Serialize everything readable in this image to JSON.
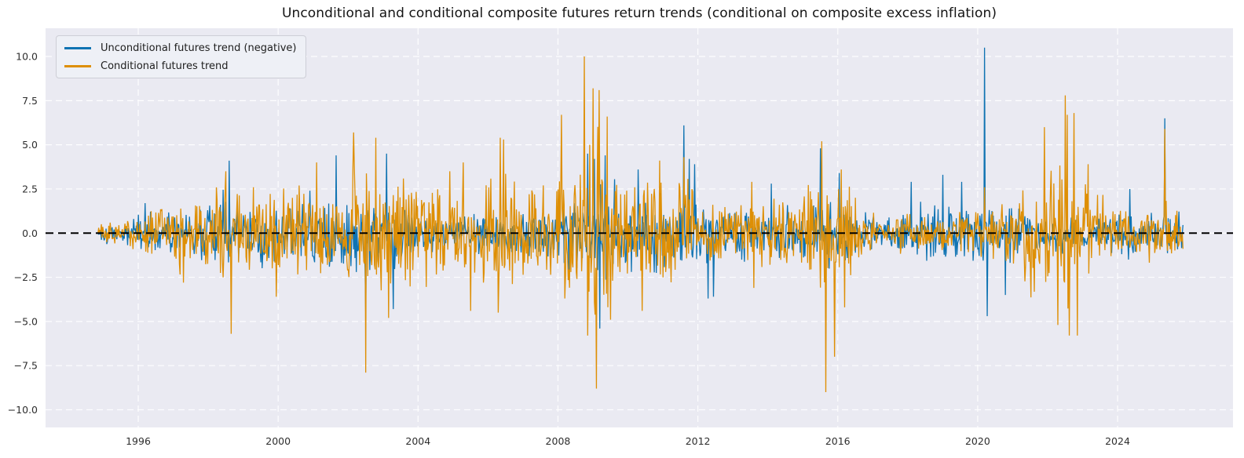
{
  "chart_data": {
    "type": "line",
    "title": "Unconditional and conditional composite futures return trends (conditional on composite excess inflation)",
    "xlabel": "",
    "ylabel": "",
    "xlim": [
      1993.35,
      2027.3
    ],
    "ylim": [
      -11.0,
      11.6
    ],
    "x_ticks": [
      1996,
      2000,
      2004,
      2008,
      2012,
      2016,
      2020,
      2024
    ],
    "x_tick_labels": [
      "1996",
      "2000",
      "2004",
      "2008",
      "2012",
      "2016",
      "2020",
      "2024"
    ],
    "y_ticks": [
      -10.0,
      -7.5,
      -5.0,
      -2.5,
      0.0,
      2.5,
      5.0,
      7.5,
      10.0
    ],
    "y_tick_labels": [
      "−10.0",
      "−7.5",
      "−5.0",
      "−2.5",
      "0.0",
      "2.5",
      "5.0",
      "7.5",
      "10.0"
    ],
    "grid": {
      "show": true,
      "color": "#ffffff",
      "style": "dashed"
    },
    "plot_background_color": "#eaeaf2",
    "figure_background_color": "#ffffff",
    "tick_label_color": "#2e2e2e",
    "zero_line": {
      "y": 0.0,
      "color": "#000000",
      "style": "dashed",
      "width": 2
    },
    "legend_position": "upper-left",
    "data_x_range": [
      1994.85,
      2025.87
    ],
    "samples_per_year": 52,
    "series": [
      {
        "name": "Unconditional futures trend (negative)",
        "color": "#0f73b2",
        "line_width": 1.3,
        "seed": 1337,
        "sigma_envelope": [
          [
            1994.85,
            0.25
          ],
          [
            1995.5,
            0.3
          ],
          [
            1996.3,
            0.5
          ],
          [
            1997.2,
            0.6
          ],
          [
            1998.2,
            0.8
          ],
          [
            1998.8,
            0.85
          ],
          [
            1999.5,
            0.75
          ],
          [
            2000.5,
            0.7
          ],
          [
            2001.5,
            0.85
          ],
          [
            2002.5,
            1.0
          ],
          [
            2003.2,
            0.85
          ],
          [
            2004.0,
            0.6
          ],
          [
            2005.0,
            0.45
          ],
          [
            2006.0,
            0.45
          ],
          [
            2007.0,
            0.55
          ],
          [
            2007.8,
            0.75
          ],
          [
            2008.5,
            1.0
          ],
          [
            2009.2,
            1.25
          ],
          [
            2010.0,
            0.95
          ],
          [
            2011.0,
            1.0
          ],
          [
            2011.8,
            1.0
          ],
          [
            2012.5,
            0.75
          ],
          [
            2013.5,
            0.6
          ],
          [
            2014.5,
            0.6
          ],
          [
            2015.3,
            0.8
          ],
          [
            2016.0,
            0.75
          ],
          [
            2016.8,
            0.5
          ],
          [
            2017.4,
            0.35
          ],
          [
            2018.0,
            0.7
          ],
          [
            2019.0,
            0.8
          ],
          [
            2019.8,
            0.75
          ],
          [
            2020.4,
            0.9
          ],
          [
            2021.0,
            0.6
          ],
          [
            2022.0,
            0.5
          ],
          [
            2023.0,
            0.45
          ],
          [
            2024.0,
            0.5
          ],
          [
            2025.0,
            0.6
          ],
          [
            2025.87,
            0.55
          ]
        ],
        "notable_points": [
          [
            1996.2,
            1.7
          ],
          [
            1998.6,
            4.1
          ],
          [
            2000.9,
            2.4
          ],
          [
            2001.65,
            4.4
          ],
          [
            2002.5,
            -4.5
          ],
          [
            2003.1,
            4.5
          ],
          [
            2003.3,
            -4.3
          ],
          [
            2008.85,
            4.5
          ],
          [
            2009.05,
            4.2
          ],
          [
            2009.2,
            -5.4
          ],
          [
            2009.35,
            4.4
          ],
          [
            2010.3,
            3.6
          ],
          [
            2011.6,
            6.1
          ],
          [
            2011.75,
            4.2
          ],
          [
            2011.9,
            3.9
          ],
          [
            2012.3,
            -3.7
          ],
          [
            2012.45,
            -3.6
          ],
          [
            2014.1,
            2.8
          ],
          [
            2015.5,
            4.8
          ],
          [
            2016.05,
            3.4
          ],
          [
            2018.1,
            2.9
          ],
          [
            2019.0,
            3.3
          ],
          [
            2019.55,
            2.9
          ],
          [
            2020.2,
            10.5
          ],
          [
            2020.27,
            -4.7
          ],
          [
            2020.8,
            -3.5
          ],
          [
            2024.35,
            2.5
          ],
          [
            2025.35,
            6.5
          ]
        ]
      },
      {
        "name": "Conditional futures trend",
        "color": "#de8f05",
        "line_width": 1.3,
        "seed": 7331,
        "sigma_envelope": [
          [
            1994.85,
            0.3
          ],
          [
            1995.5,
            0.35
          ],
          [
            1996.3,
            0.65
          ],
          [
            1997.2,
            0.95
          ],
          [
            1998.2,
            1.25
          ],
          [
            1998.8,
            1.3
          ],
          [
            1999.5,
            1.15
          ],
          [
            2000.5,
            1.1
          ],
          [
            2001.5,
            1.25
          ],
          [
            2002.2,
            1.6
          ],
          [
            2002.8,
            1.6
          ],
          [
            2003.5,
            1.35
          ],
          [
            2004.3,
            1.2
          ],
          [
            2005.2,
            1.3
          ],
          [
            2006.2,
            1.5
          ],
          [
            2007.0,
            1.25
          ],
          [
            2007.8,
            1.35
          ],
          [
            2008.4,
            1.8
          ],
          [
            2008.9,
            2.2
          ],
          [
            2009.3,
            2.3
          ],
          [
            2009.9,
            1.7
          ],
          [
            2010.6,
            1.4
          ],
          [
            2011.4,
            1.45
          ],
          [
            2012.2,
            0.9
          ],
          [
            2013.0,
            0.75
          ],
          [
            2014.0,
            0.75
          ],
          [
            2015.0,
            1.2
          ],
          [
            2015.7,
            1.5
          ],
          [
            2016.3,
            1.2
          ],
          [
            2017.0,
            0.45
          ],
          [
            2018.0,
            0.45
          ],
          [
            2019.0,
            0.5
          ],
          [
            2019.8,
            0.6
          ],
          [
            2020.5,
            0.8
          ],
          [
            2021.3,
            1.1
          ],
          [
            2021.9,
            1.5
          ],
          [
            2022.5,
            1.9
          ],
          [
            2023.0,
            1.4
          ],
          [
            2023.6,
            0.8
          ],
          [
            2024.4,
            0.55
          ],
          [
            2025.0,
            0.7
          ],
          [
            2025.87,
            0.65
          ]
        ],
        "notable_points": [
          [
            1997.3,
            -2.8
          ],
          [
            1998.5,
            3.5
          ],
          [
            1998.65,
            -5.7
          ],
          [
            1999.3,
            2.6
          ],
          [
            1999.95,
            -3.6
          ],
          [
            2001.1,
            4.0
          ],
          [
            2002.15,
            5.7
          ],
          [
            2002.5,
            -7.9
          ],
          [
            2002.8,
            5.4
          ],
          [
            2003.15,
            -4.8
          ],
          [
            2004.9,
            3.5
          ],
          [
            2005.3,
            4.0
          ],
          [
            2005.5,
            -4.4
          ],
          [
            2006.3,
            -4.5
          ],
          [
            2006.35,
            5.4
          ],
          [
            2006.45,
            5.3
          ],
          [
            2008.1,
            6.7
          ],
          [
            2008.2,
            -3.7
          ],
          [
            2008.75,
            10.0
          ],
          [
            2008.85,
            -5.8
          ],
          [
            2009.0,
            8.2
          ],
          [
            2009.1,
            -8.8
          ],
          [
            2009.17,
            8.1
          ],
          [
            2009.4,
            6.6
          ],
          [
            2009.5,
            -4.9
          ],
          [
            2010.4,
            -4.4
          ],
          [
            2011.6,
            4.3
          ],
          [
            2013.55,
            2.9
          ],
          [
            2013.6,
            -3.1
          ],
          [
            2015.55,
            5.2
          ],
          [
            2015.65,
            -9.0
          ],
          [
            2015.9,
            -7.0
          ],
          [
            2016.1,
            3.6
          ],
          [
            2016.2,
            -4.2
          ],
          [
            2020.2,
            2.6
          ],
          [
            2021.9,
            6.0
          ],
          [
            2022.3,
            -5.2
          ],
          [
            2022.5,
            7.8
          ],
          [
            2022.57,
            6.7
          ],
          [
            2022.62,
            -5.8
          ],
          [
            2022.75,
            6.8
          ],
          [
            2022.85,
            -5.8
          ],
          [
            2023.15,
            3.9
          ],
          [
            2025.35,
            5.9
          ]
        ]
      }
    ]
  }
}
